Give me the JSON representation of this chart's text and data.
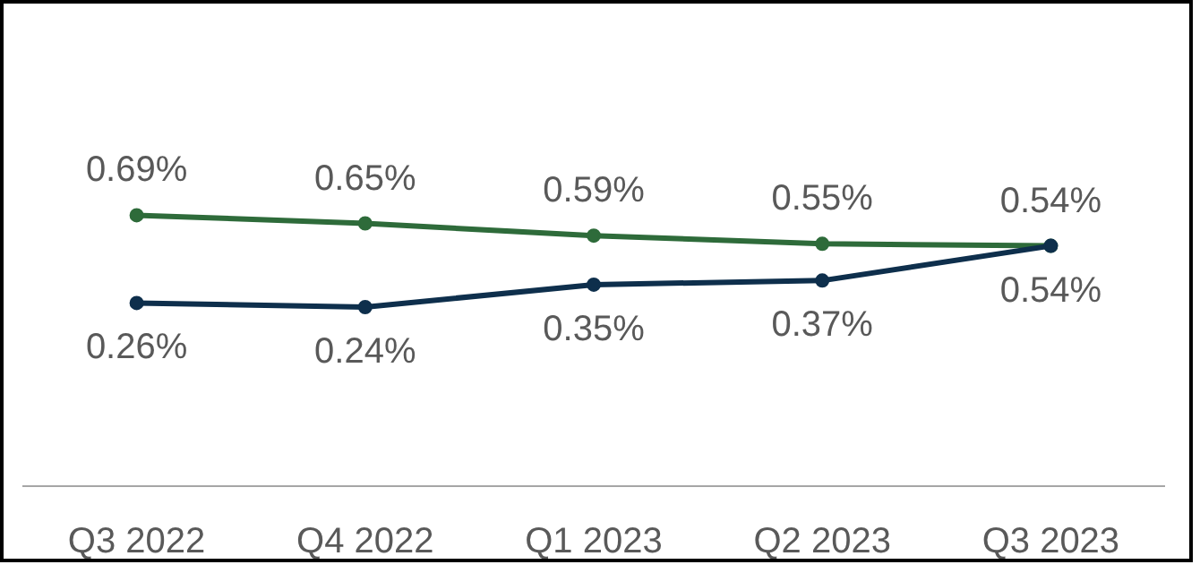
{
  "chart_data": {
    "type": "line",
    "categories": [
      "Q3 2022",
      "Q4 2022",
      "Q1 2023",
      "Q2 2023",
      "Q3 2023"
    ],
    "series": [
      {
        "color": "#2e6b3a",
        "values": [
          0.69,
          0.65,
          0.59,
          0.55,
          0.54
        ],
        "value_labels": [
          "0.69%",
          "0.65%",
          "0.59%",
          "0.55%",
          "0.54%"
        ]
      },
      {
        "color": "#0e2f4c",
        "values": [
          0.26,
          0.24,
          0.35,
          0.37,
          0.54
        ],
        "value_labels": [
          "0.26%",
          "0.24%",
          "0.35%",
          "0.37%",
          "0.54%"
        ]
      }
    ],
    "marker": "circle",
    "line_style": "solid",
    "grid": false
  }
}
